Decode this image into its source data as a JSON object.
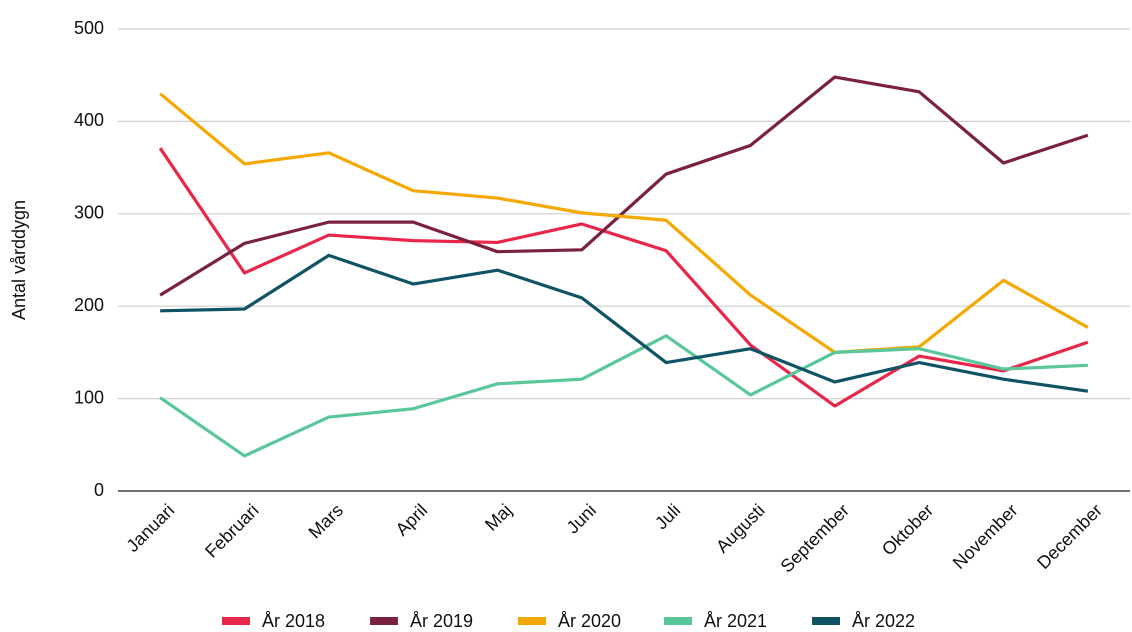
{
  "chart_data": {
    "type": "line",
    "y_label": "Antal vårddygn",
    "categories": [
      "Januari",
      "Februari",
      "Mars",
      "April",
      "Maj",
      "Juni",
      "Juli",
      "Augusti",
      "September",
      "Oktober",
      "November",
      "December"
    ],
    "series": [
      {
        "name": "År 2018",
        "color": "#e8264a",
        "values": [
          371,
          236,
          277,
          271,
          269,
          289,
          260,
          158,
          92,
          146,
          130,
          161
        ]
      },
      {
        "name": "År 2019",
        "color": "#7a2142",
        "values": [
          212,
          268,
          291,
          291,
          259,
          261,
          343,
          374,
          448,
          432,
          355,
          385
        ]
      },
      {
        "name": "År 2020",
        "color": "#f5a800",
        "values": [
          430,
          354,
          366,
          325,
          317,
          301,
          293,
          212,
          150,
          156,
          228,
          177
        ]
      },
      {
        "name": "År 2021",
        "color": "#5ac79b",
        "values": [
          101,
          38,
          80,
          89,
          116,
          121,
          168,
          104,
          150,
          154,
          132,
          136
        ]
      },
      {
        "name": "År 2022",
        "color": "#0f5364",
        "values": [
          195,
          197,
          255,
          224,
          239,
          209,
          139,
          154,
          118,
          139,
          121,
          108
        ]
      }
    ],
    "ylim": [
      0,
      500
    ],
    "yticks": [
      0,
      100,
      200,
      300,
      400,
      500
    ],
    "grid": true
  }
}
